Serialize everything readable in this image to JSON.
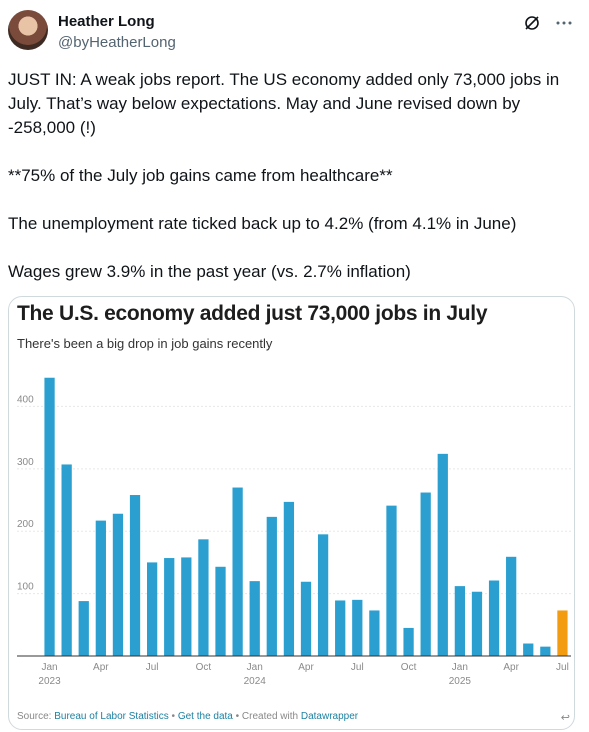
{
  "header": {
    "name": "Heather Long",
    "handle": "@byHeatherLong"
  },
  "tweet": {
    "paragraphs": [
      "JUST IN: A weak jobs report. The US economy added only 73,000 jobs in July. That’s way below expectations. May and June revised down by -258,000 (!)",
      "**75% of the July job gains came from healthcare**",
      "The unemployment rate ticked back up to 4.2% (from 4.1% in June)",
      "Wages grew 3.9% in the past year (vs. 2.7% inflation)"
    ]
  },
  "card": {
    "title": "The U.S. economy added just 73,000 jobs in July",
    "subtitle": "There's been a big drop in job gains recently",
    "source_label": "Source: ",
    "source_link": "Bureau of Labor Statistics",
    "sep1": " • ",
    "get_data": "Get the data",
    "sep2": " • Created with ",
    "datawrapper": "Datawrapper",
    "corner_glyph": "↩"
  },
  "chart_data": {
    "type": "bar",
    "title": "The U.S. economy added just 73,000 jobs in July",
    "subtitle": "There's been a big drop in job gains recently",
    "categories": [
      "Jan 2023",
      "Feb 2023",
      "Mar 2023",
      "Apr 2023",
      "May 2023",
      "Jun 2023",
      "Jul 2023",
      "Aug 2023",
      "Sep 2023",
      "Oct 2023",
      "Nov 2023",
      "Dec 2023",
      "Jan 2024",
      "Feb 2024",
      "Mar 2024",
      "Apr 2024",
      "May 2024",
      "Jun 2024",
      "Jul 2024",
      "Aug 2024",
      "Sep 2024",
      "Oct 2024",
      "Nov 2024",
      "Dec 2024",
      "Jan 2025",
      "Feb 2025",
      "Mar 2025",
      "Apr 2025",
      "May 2025",
      "Jun 2025",
      "Jul 2025"
    ],
    "values": [
      446,
      307,
      88,
      217,
      228,
      258,
      150,
      157,
      158,
      187,
      143,
      270,
      120,
      223,
      247,
      119,
      195,
      89,
      90,
      73,
      241,
      45,
      262,
      324,
      112,
      103,
      121,
      159,
      20,
      15,
      73
    ],
    "highlight_index": 30,
    "colors": {
      "bar": "#2a9fd0",
      "highlight": "#f39c12",
      "grid": "#e8e8e8",
      "axis_text": "#8a8a8a"
    },
    "yticks": [
      100,
      200,
      300,
      400
    ],
    "ylim": [
      0,
      460
    ],
    "xtick_labels": [
      {
        "i": 0,
        "line1": "Jan",
        "line2": "2023"
      },
      {
        "i": 3,
        "line1": "Apr",
        "line2": ""
      },
      {
        "i": 6,
        "line1": "Jul",
        "line2": ""
      },
      {
        "i": 9,
        "line1": "Oct",
        "line2": ""
      },
      {
        "i": 12,
        "line1": "Jan",
        "line2": "2024"
      },
      {
        "i": 15,
        "line1": "Apr",
        "line2": ""
      },
      {
        "i": 18,
        "line1": "Jul",
        "line2": ""
      },
      {
        "i": 21,
        "line1": "Oct",
        "line2": ""
      },
      {
        "i": 24,
        "line1": "Jan",
        "line2": "2025"
      },
      {
        "i": 27,
        "line1": "Apr",
        "line2": ""
      },
      {
        "i": 30,
        "line1": "Jul",
        "line2": ""
      }
    ],
    "grid": true
  }
}
